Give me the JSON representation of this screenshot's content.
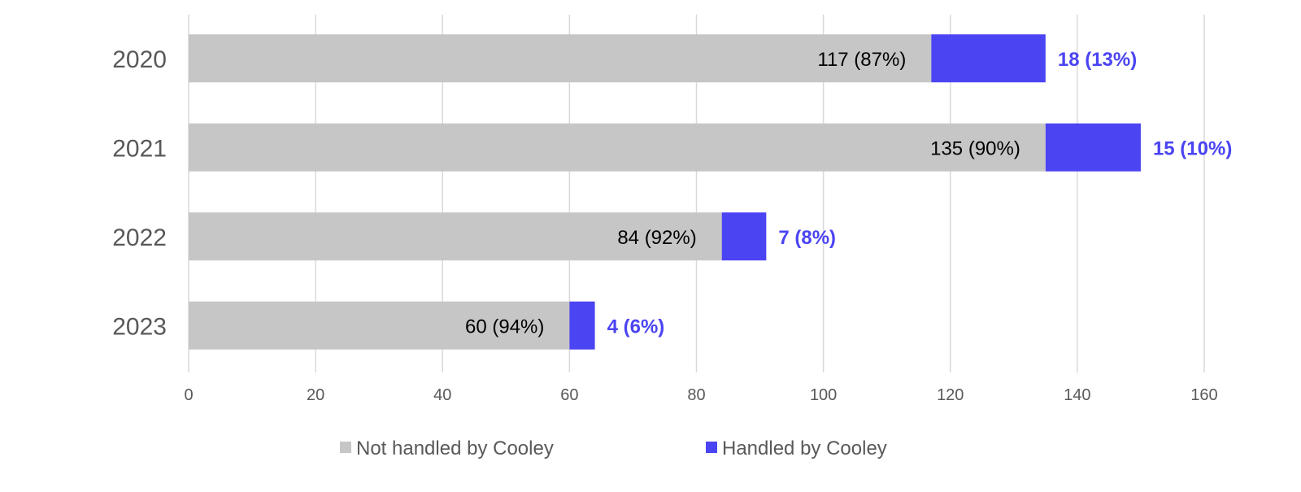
{
  "chart_data": {
    "type": "bar",
    "orientation": "horizontal",
    "stacked": true,
    "categories": [
      "2020",
      "2021",
      "2022",
      "2023"
    ],
    "series": [
      {
        "name": "Not handled by Cooley",
        "values": [
          117,
          135,
          84,
          60
        ],
        "labels": [
          "117 (87%)",
          "135 (90%)",
          "84 (92%)",
          "60 (94%)"
        ],
        "color": "#c6c6c6"
      },
      {
        "name": "Handled by Cooley",
        "values": [
          18,
          15,
          7,
          4
        ],
        "labels": [
          "18 (13%)",
          "15 (10%)",
          "7 (8%)",
          "4 (6%)"
        ],
        "color": "#4b44f2"
      }
    ],
    "xlim": [
      0,
      160
    ],
    "xticks": [
      "0",
      "20",
      "40",
      "60",
      "80",
      "100",
      "120",
      "140",
      "160"
    ],
    "grid": true,
    "legend_position": "bottom",
    "title": "",
    "xlabel": "",
    "ylabel": ""
  }
}
